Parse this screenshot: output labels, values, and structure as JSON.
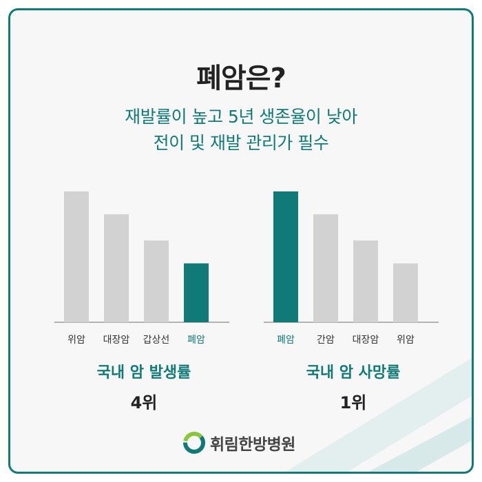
{
  "title": "폐암은?",
  "subtitle_line1": "재발률이 높고 5년 생존율이 낮아",
  "subtitle_line2": "전이 및 재발 관리가 필수",
  "colors": {
    "accent": "#0f7a78",
    "bar_gray": "#d2d2d2",
    "tick_text": "#333333"
  },
  "chart_data": [
    {
      "type": "bar",
      "categories": [
        "위암",
        "대장암",
        "갑상선",
        "폐암"
      ],
      "values": [
        4,
        3.3,
        2.5,
        1.8
      ],
      "highlight_index": 3,
      "caption": "국내 암 발생률",
      "rank": "4위"
    },
    {
      "type": "bar",
      "categories": [
        "폐암",
        "간암",
        "대장암",
        "위암"
      ],
      "values": [
        4,
        3.3,
        2.5,
        1.8
      ],
      "highlight_index": 0,
      "caption": "국내 암 사망률",
      "rank": "1위"
    }
  ],
  "logo_text": "휘림한방병원"
}
